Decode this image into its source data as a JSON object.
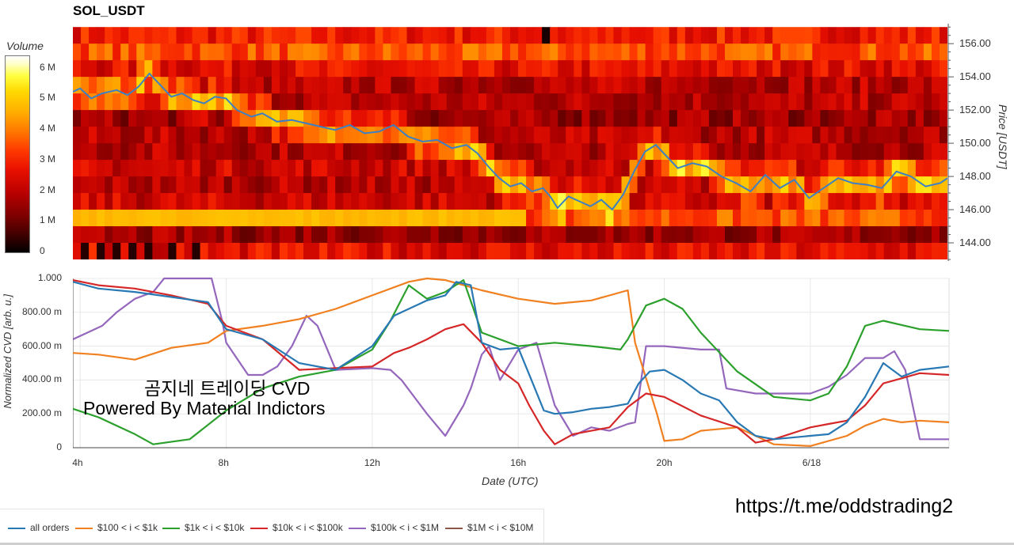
{
  "title": "SOL_USDT",
  "colorbar": {
    "title": "Volume",
    "ticks": [
      {
        "label": "6 M",
        "value": 6
      },
      {
        "label": "5 M",
        "value": 5
      },
      {
        "label": "4 M",
        "value": 4
      },
      {
        "label": "3 M",
        "value": 3
      },
      {
        "label": "2 M",
        "value": 2
      },
      {
        "label": "1 M",
        "value": 1
      },
      {
        "label": "0",
        "value": 0
      }
    ],
    "range": [
      0,
      6.4
    ]
  },
  "overlay": {
    "korean_text": "곰지네 트레이딩 CVD",
    "powered_text": "Powered By Material Indictors",
    "telegram": "https://t.me/oddstrading2"
  },
  "colors": {
    "all orders": "#2878b4",
    "$100 < i < $1k": "#f08020",
    "$1k < i < $10k": "#2ca02c",
    "$10k < i < $100k": "#d62728",
    "$100k < i < $1M": "#9467bd",
    "$1M < i < $10M": "#8c564b"
  },
  "chart_data": [
    {
      "type": "heatmap",
      "ylabel": "Price [USDT]",
      "ylim": [
        143.0,
        157.2
      ],
      "yticks": [
        "144.00",
        "146.00",
        "148.00",
        "150.00",
        "152.00",
        "154.00",
        "156.00"
      ],
      "price_bins": [
        156.5,
        155.5,
        154.5,
        153.5,
        152.5,
        151.5,
        150.5,
        149.5,
        148.5,
        147.5,
        146.5,
        145.5,
        144.5,
        143.5
      ],
      "price_series": {
        "name": "",
        "x": [
          3.8,
          4.0,
          4.3,
          4.6,
          5.0,
          5.3,
          5.6,
          5.9,
          6.2,
          6.5,
          6.8,
          7.1,
          7.4,
          7.7,
          8.0,
          8.3,
          8.7,
          9.0,
          9.4,
          9.8,
          10.2,
          10.6,
          11.0,
          11.4,
          11.8,
          12.2,
          12.6,
          13.0,
          13.4,
          13.8,
          14.2,
          14.6,
          14.9,
          15.2,
          15.5,
          15.8,
          16.1,
          16.4,
          16.7,
          16.9,
          17.1,
          17.4,
          17.7,
          18.0,
          18.3,
          18.6,
          18.9,
          19.2,
          19.5,
          19.8,
          20.1,
          20.4,
          20.8,
          21.2,
          21.6,
          22.0,
          22.4,
          22.8,
          23.2,
          23.6,
          24.0,
          24.4,
          24.8,
          25.2,
          25.6,
          26.0,
          26.4,
          26.8,
          27.2,
          27.6,
          27.8
        ],
        "y": [
          153.1,
          153.3,
          152.7,
          153.0,
          153.2,
          152.9,
          153.4,
          154.2,
          153.5,
          152.8,
          153.0,
          152.6,
          152.4,
          152.8,
          152.7,
          152.0,
          151.6,
          151.8,
          151.3,
          151.4,
          151.2,
          151.0,
          150.8,
          151.1,
          150.6,
          150.7,
          151.1,
          150.4,
          150.1,
          150.2,
          149.7,
          149.9,
          149.4,
          148.6,
          147.9,
          147.4,
          147.6,
          147.1,
          147.3,
          146.8,
          146.1,
          146.8,
          146.5,
          146.2,
          146.6,
          146.0,
          146.9,
          148.3,
          149.5,
          149.9,
          149.2,
          148.5,
          148.8,
          148.6,
          148.0,
          147.6,
          147.1,
          148.1,
          147.3,
          147.8,
          146.7,
          147.3,
          147.9,
          147.6,
          147.5,
          147.3,
          148.3,
          148.0,
          147.4,
          147.6,
          147.9
        ]
      }
    },
    {
      "type": "line",
      "xlabel": "Date (UTC)",
      "ylabel": "Normalized CVD [arb. u.]",
      "ylim": [
        0,
        1.0
      ],
      "yticks": [
        {
          "label": "1.000",
          "value": 1.0
        },
        {
          "label": "800.00 m",
          "value": 0.8
        },
        {
          "label": "600.00 m",
          "value": 0.6
        },
        {
          "label": "400.00 m",
          "value": 0.4
        },
        {
          "label": "200.00 m",
          "value": 0.2
        },
        {
          "label": "0",
          "value": 0
        }
      ],
      "xlim": [
        3.8,
        27.8
      ],
      "xticks": [
        {
          "label": "4h",
          "value": 4
        },
        {
          "label": "8h",
          "value": 8
        },
        {
          "label": "12h",
          "value": 12
        },
        {
          "label": "16h",
          "value": 16
        },
        {
          "label": "20h",
          "value": 20
        },
        {
          "label": "6/18",
          "value": 24
        }
      ],
      "series": [
        {
          "name": "all orders",
          "x": [
            3.8,
            4.5,
            5.5,
            6.5,
            7.5,
            8.0,
            9.0,
            10.0,
            11.0,
            12.0,
            12.6,
            13.0,
            13.5,
            14.0,
            14.3,
            14.7,
            15.0,
            15.5,
            16.0,
            16.4,
            16.7,
            17.0,
            17.5,
            18.0,
            18.5,
            19.0,
            19.3,
            19.6,
            20.0,
            20.5,
            21.0,
            21.5,
            22.0,
            22.5,
            23.0,
            23.5,
            24.0,
            24.5,
            25.0,
            25.5,
            26.0,
            26.5,
            27.0,
            27.8
          ],
          "y": [
            0.98,
            0.94,
            0.92,
            0.89,
            0.86,
            0.7,
            0.64,
            0.5,
            0.46,
            0.6,
            0.78,
            0.82,
            0.87,
            0.9,
            0.98,
            0.96,
            0.62,
            0.58,
            0.59,
            0.38,
            0.22,
            0.2,
            0.21,
            0.23,
            0.24,
            0.26,
            0.38,
            0.45,
            0.46,
            0.4,
            0.32,
            0.28,
            0.15,
            0.07,
            0.05,
            0.06,
            0.07,
            0.08,
            0.15,
            0.3,
            0.5,
            0.42,
            0.46,
            0.48
          ]
        },
        {
          "name": "$100 < i < $1k",
          "x": [
            3.8,
            4.5,
            5.5,
            6.5,
            7.5,
            8.0,
            9.0,
            10.0,
            11.0,
            12.0,
            13.0,
            13.5,
            14.0,
            15.0,
            16.0,
            17.0,
            18.0,
            19.0,
            19.2,
            19.8,
            20.0,
            20.5,
            21.0,
            22.0,
            23.0,
            24.0,
            25.0,
            25.5,
            26.0,
            26.5,
            27.0,
            27.8
          ],
          "y": [
            0.56,
            0.55,
            0.52,
            0.59,
            0.62,
            0.69,
            0.72,
            0.76,
            0.82,
            0.9,
            0.98,
            1.0,
            0.99,
            0.93,
            0.88,
            0.85,
            0.87,
            0.93,
            0.62,
            0.2,
            0.04,
            0.05,
            0.1,
            0.12,
            0.02,
            0.01,
            0.07,
            0.13,
            0.17,
            0.15,
            0.16,
            0.15
          ]
        },
        {
          "name": "$1k < i < $10k",
          "x": [
            3.8,
            4.5,
            5.5,
            6.0,
            7.0,
            8.0,
            9.0,
            10.0,
            11.0,
            12.0,
            12.5,
            13.0,
            13.5,
            14.0,
            14.5,
            15.0,
            16.0,
            17.0,
            18.0,
            18.8,
            19.0,
            19.5,
            20.0,
            20.5,
            21.0,
            22.0,
            23.0,
            24.0,
            24.5,
            25.0,
            25.5,
            26.0,
            27.0,
            27.8
          ],
          "y": [
            0.23,
            0.18,
            0.08,
            0.02,
            0.05,
            0.22,
            0.35,
            0.42,
            0.46,
            0.58,
            0.75,
            0.96,
            0.88,
            0.92,
            0.99,
            0.68,
            0.6,
            0.62,
            0.6,
            0.58,
            0.64,
            0.84,
            0.88,
            0.82,
            0.68,
            0.45,
            0.3,
            0.28,
            0.32,
            0.48,
            0.72,
            0.75,
            0.7,
            0.69
          ]
        },
        {
          "name": "$10k < i < $100k",
          "x": [
            3.8,
            4.5,
            5.5,
            6.5,
            7.5,
            8.0,
            9.0,
            10.0,
            11.0,
            12.0,
            12.6,
            13.0,
            13.5,
            14.0,
            14.5,
            15.0,
            15.5,
            16.0,
            16.3,
            16.7,
            17.0,
            17.5,
            18.0,
            18.5,
            19.0,
            19.5,
            20.0,
            21.0,
            22.0,
            22.5,
            23.0,
            24.0,
            24.5,
            25.0,
            25.5,
            26.0,
            26.5,
            27.0,
            27.8
          ],
          "y": [
            0.99,
            0.96,
            0.94,
            0.9,
            0.85,
            0.72,
            0.64,
            0.46,
            0.47,
            0.48,
            0.56,
            0.59,
            0.64,
            0.7,
            0.73,
            0.62,
            0.46,
            0.38,
            0.25,
            0.1,
            0.02,
            0.08,
            0.1,
            0.12,
            0.24,
            0.32,
            0.3,
            0.19,
            0.12,
            0.03,
            0.05,
            0.12,
            0.14,
            0.16,
            0.25,
            0.38,
            0.41,
            0.44,
            0.43
          ]
        },
        {
          "name": "$100k < i < $1M",
          "x": [
            3.8,
            4.2,
            4.6,
            5.0,
            5.5,
            6.0,
            6.3,
            6.6,
            7.0,
            7.3,
            7.6,
            7.9,
            8.0,
            8.6,
            9.0,
            9.4,
            9.8,
            10.2,
            10.5,
            11.0,
            12.0,
            12.5,
            12.8,
            13.5,
            14.0,
            14.5,
            14.7,
            15.0,
            15.2,
            15.5,
            16.0,
            16.5,
            17.0,
            17.5,
            18.0,
            18.5,
            19.0,
            19.2,
            19.5,
            20.0,
            21.0,
            21.5,
            21.7,
            22.5,
            23.0,
            24.0,
            24.5,
            25.0,
            25.5,
            26.0,
            26.3,
            26.6,
            27.0,
            27.5,
            27.8
          ],
          "y": [
            0.64,
            0.68,
            0.72,
            0.8,
            0.88,
            0.92,
            1.0,
            1.0,
            1.0,
            1.0,
            1.0,
            0.74,
            0.62,
            0.43,
            0.43,
            0.48,
            0.6,
            0.78,
            0.72,
            0.46,
            0.47,
            0.46,
            0.4,
            0.2,
            0.07,
            0.25,
            0.35,
            0.55,
            0.6,
            0.4,
            0.58,
            0.62,
            0.25,
            0.07,
            0.12,
            0.1,
            0.14,
            0.15,
            0.6,
            0.6,
            0.58,
            0.58,
            0.35,
            0.32,
            0.32,
            0.32,
            0.36,
            0.43,
            0.53,
            0.53,
            0.57,
            0.46,
            0.05,
            0.05,
            0.05
          ]
        },
        {
          "name": "$1M < i < $10M",
          "x": [],
          "y": []
        }
      ]
    }
  ]
}
